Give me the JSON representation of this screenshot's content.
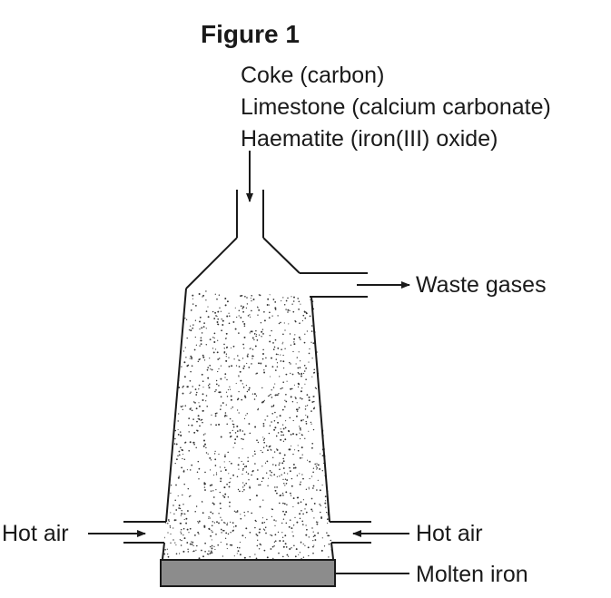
{
  "figure_title": "Figure 1",
  "inputs": [
    "Coke (carbon)",
    "Limestone (calcium carbonate)",
    "Haematite (iron(III) oxide)"
  ],
  "labels": {
    "waste_gases": "Waste gases",
    "hot_air_left": "Hot air",
    "hot_air_right": "Hot air",
    "molten_iron": "Molten iron"
  },
  "colors": {
    "line": "#1a1a1a",
    "molten_iron": "#8c8c8c",
    "stipple": "#333333"
  }
}
